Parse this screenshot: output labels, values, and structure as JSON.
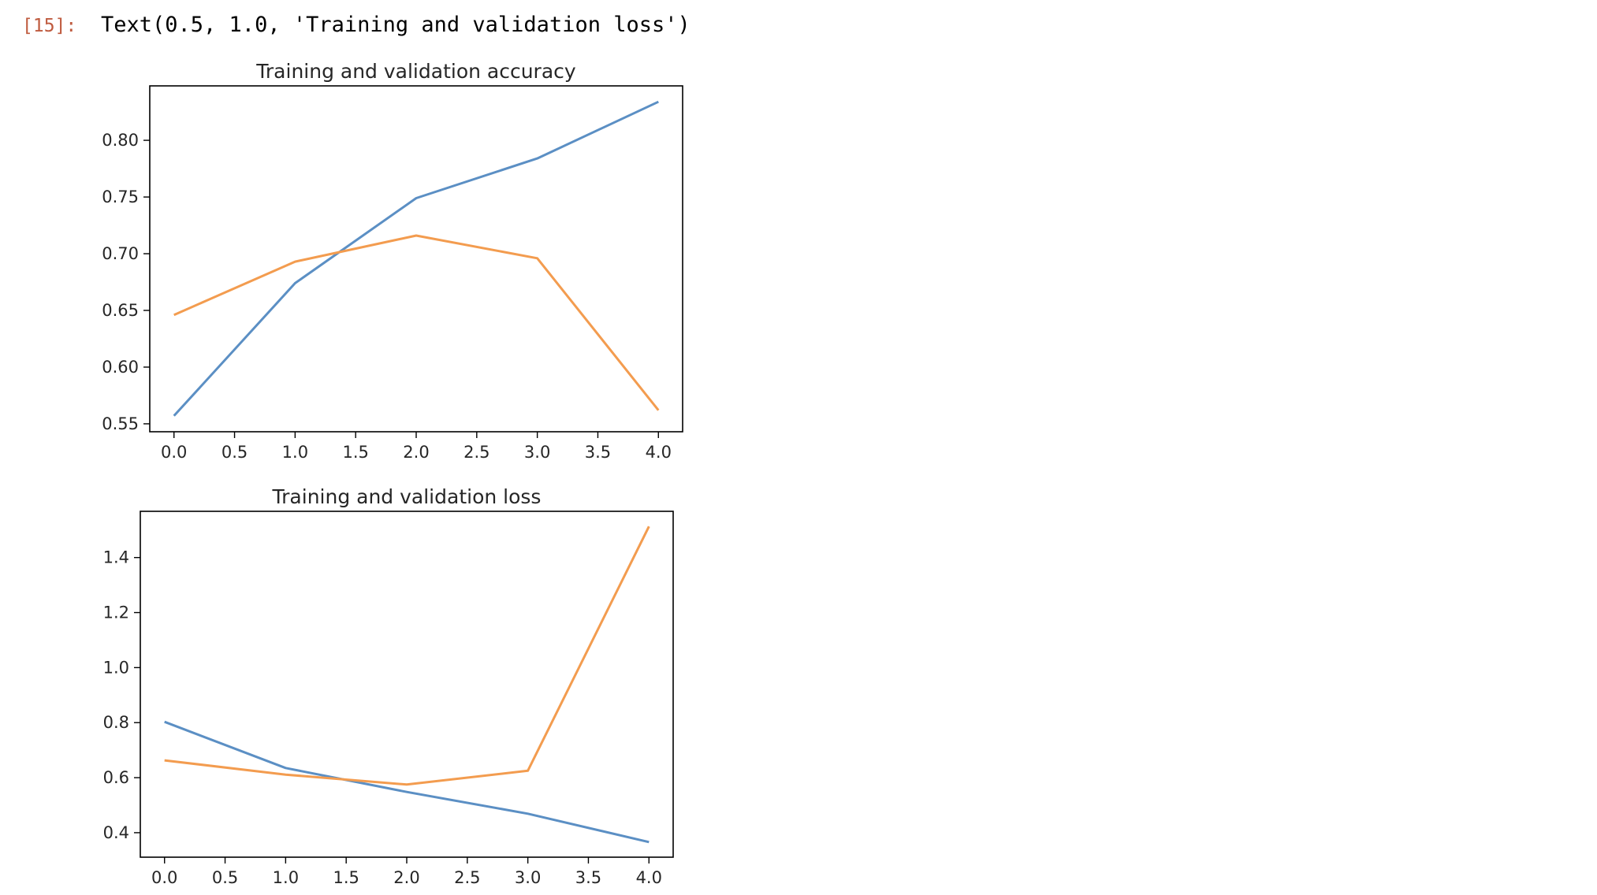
{
  "cell": {
    "prompt": "[15]:",
    "output_text": "Text(0.5, 1.0, 'Training and validation loss')"
  },
  "colors": {
    "series_training": "#5b8fc4",
    "series_validation": "#f39c4f",
    "axes": "#000000"
  },
  "chart_data": [
    {
      "type": "line",
      "title": "Training and validation accuracy",
      "xlabel": "",
      "ylabel": "",
      "x": [
        0,
        1,
        2,
        3,
        4
      ],
      "xticks": [
        "0.0",
        "0.5",
        "1.0",
        "1.5",
        "2.0",
        "2.5",
        "3.0",
        "3.5",
        "4.0"
      ],
      "yticks": [
        "0.55",
        "0.60",
        "0.65",
        "0.70",
        "0.75",
        "0.80"
      ],
      "xlim": [
        -0.2,
        4.2
      ],
      "ylim": [
        0.543,
        0.848
      ],
      "grid": false,
      "series": [
        {
          "values": [
            0.557,
            0.674,
            0.749,
            0.784,
            0.834
          ]
        },
        {
          "values": [
            0.646,
            0.693,
            0.716,
            0.696,
            0.562
          ]
        }
      ]
    },
    {
      "type": "line",
      "title": "Training and validation loss",
      "xlabel": "",
      "ylabel": "",
      "x": [
        0,
        1,
        2,
        3,
        4
      ],
      "xticks": [
        "0.0",
        "0.5",
        "1.0",
        "1.5",
        "2.0",
        "2.5",
        "3.0",
        "3.5",
        "4.0"
      ],
      "yticks": [
        "0.4",
        "0.6",
        "0.8",
        "1.0",
        "1.2",
        "1.4"
      ],
      "xlim": [
        -0.2,
        4.2
      ],
      "ylim": [
        0.311,
        1.568
      ],
      "grid": false,
      "series": [
        {
          "values": [
            0.803,
            0.635,
            0.548,
            0.469,
            0.366
          ]
        },
        {
          "values": [
            0.663,
            0.611,
            0.575,
            0.625,
            1.513
          ]
        }
      ]
    }
  ]
}
